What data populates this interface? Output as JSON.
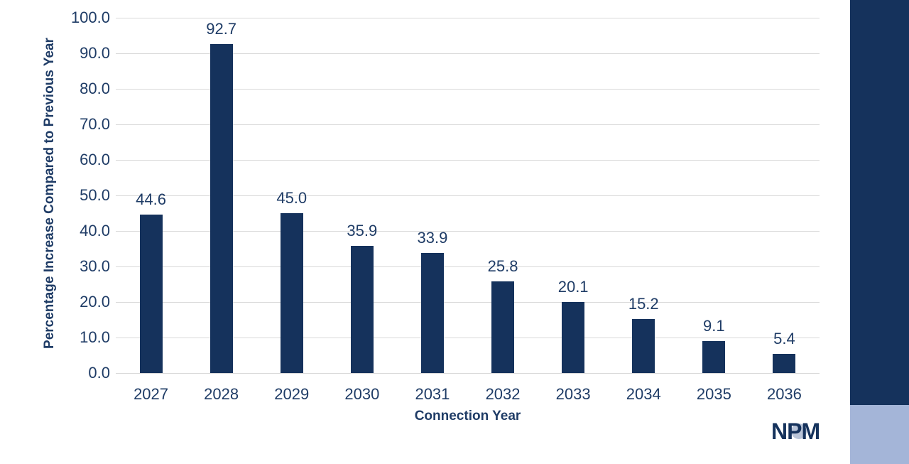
{
  "chart_data": {
    "type": "bar",
    "title": "",
    "xlabel": "Connection Year",
    "ylabel": "Percentage Increase Compared to Previous Year",
    "categories": [
      "2027",
      "2028",
      "2029",
      "2030",
      "2031",
      "2032",
      "2033",
      "2034",
      "2035",
      "2036"
    ],
    "values": [
      44.6,
      92.7,
      45.0,
      35.9,
      33.9,
      25.8,
      20.1,
      15.2,
      9.1,
      5.4
    ],
    "value_labels": [
      "44.6",
      "92.7",
      "45.0",
      "35.9",
      "33.9",
      "25.8",
      "20.1",
      "15.2",
      "9.1",
      "5.4"
    ],
    "ylim": [
      0,
      100
    ],
    "ytick_labels": [
      "0.0",
      "10.0",
      "20.0",
      "30.0",
      "40.0",
      "50.0",
      "60.0",
      "70.0",
      "80.0",
      "90.0",
      "100.0"
    ],
    "grid": true,
    "legend": "none",
    "colors": {
      "bar": "#15325c",
      "grid": "#d9d9d9",
      "axis_text": "#1f3c66"
    }
  },
  "branding": {
    "logo": {
      "letters": [
        "N",
        "P",
        "M"
      ],
      "text_color": "#15325c",
      "circle_color": "#b9c4d8"
    },
    "side_band": {
      "top_color": "#15325c",
      "bottom_color": "#a4b5d8"
    }
  }
}
